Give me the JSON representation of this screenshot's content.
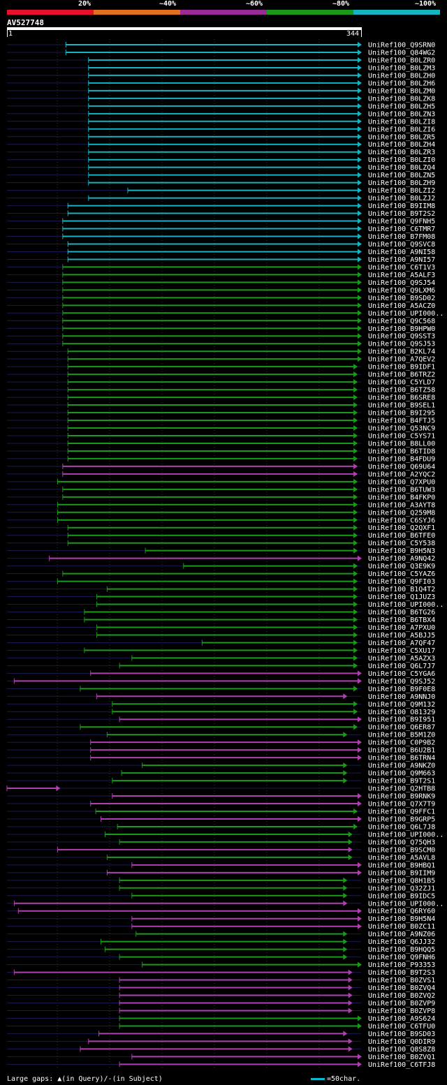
{
  "legend": {
    "labels": [
      "20%",
      "~40%",
      "~60%",
      "~80%",
      "~100%"
    ],
    "colors": [
      "#e8102c",
      "#e07020",
      "#9a2a98",
      "#1a9a1a",
      "#14b4c0"
    ]
  },
  "query": {
    "id": "AV527748",
    "start": "1",
    "end": "344"
  },
  "footer": {
    "gaps_prefix": "Large gaps:",
    "gaps_query": "(in Query)/",
    "gaps_dash": "-",
    "gaps_subject": "(in Subject)",
    "scale_label": "=50char."
  },
  "colors": {
    "cyan": "#14b4c0",
    "green": "#1a9a1a",
    "magenta": "#b040b0",
    "faint": "#1a1a50"
  },
  "chart_data": {
    "type": "alignment-map",
    "query_length": 344,
    "hits": [
      {
        "name": "UniRef100_Q9SRN0",
        "color": "cyan",
        "start": 58,
        "end": 344
      },
      {
        "name": "UniRef100_Q84WG2",
        "color": "cyan",
        "start": 58,
        "end": 344
      },
      {
        "name": "UniRef100_B0LZR0",
        "color": "cyan",
        "start": 80,
        "end": 344
      },
      {
        "name": "UniRef100_B0LZM3",
        "color": "cyan",
        "start": 80,
        "end": 344
      },
      {
        "name": "UniRef100_B0LZH0",
        "color": "cyan",
        "start": 80,
        "end": 344
      },
      {
        "name": "UniRef100_B0LZH6",
        "color": "cyan",
        "start": 80,
        "end": 344
      },
      {
        "name": "UniRef100_B0LZM0",
        "color": "cyan",
        "start": 80,
        "end": 344
      },
      {
        "name": "UniRef100_B0LZK8",
        "color": "cyan",
        "start": 80,
        "end": 344
      },
      {
        "name": "UniRef100_B0LZH5",
        "color": "cyan",
        "start": 80,
        "end": 344
      },
      {
        "name": "UniRef100_B0LZN3",
        "color": "cyan",
        "start": 80,
        "end": 344
      },
      {
        "name": "UniRef100_B0LZI8",
        "color": "cyan",
        "start": 80,
        "end": 344
      },
      {
        "name": "UniRef100_B0LZI6",
        "color": "cyan",
        "start": 80,
        "end": 344
      },
      {
        "name": "UniRef100_B0LZR5",
        "color": "cyan",
        "start": 80,
        "end": 344
      },
      {
        "name": "UniRef100_B0LZH4",
        "color": "cyan",
        "start": 80,
        "end": 344
      },
      {
        "name": "UniRef100_B0LZR3",
        "color": "cyan",
        "start": 80,
        "end": 344
      },
      {
        "name": "UniRef100_B0LZI0",
        "color": "cyan",
        "start": 80,
        "end": 344
      },
      {
        "name": "UniRef100_B0LZQ4",
        "color": "cyan",
        "start": 80,
        "end": 344
      },
      {
        "name": "UniRef100_B0LZN5",
        "color": "cyan",
        "start": 80,
        "end": 344
      },
      {
        "name": "UniRef100_B0LZH9",
        "color": "cyan",
        "start": 80,
        "end": 344
      },
      {
        "name": "UniRef100_B0LZI2",
        "color": "cyan",
        "start": 118,
        "end": 344
      },
      {
        "name": "UniRef100_B0LZJ2",
        "color": "cyan",
        "start": 80,
        "end": 344
      },
      {
        "name": "UniRef100_B9IIM8",
        "color": "cyan",
        "start": 60,
        "end": 344
      },
      {
        "name": "UniRef100_B9T2S2",
        "color": "cyan",
        "start": 60,
        "end": 344
      },
      {
        "name": "UniRef100_Q9FNH5",
        "color": "cyan",
        "start": 55,
        "end": 344
      },
      {
        "name": "UniRef100_C6TMR7",
        "color": "cyan",
        "start": 55,
        "end": 344
      },
      {
        "name": "UniRef100_B7FM08",
        "color": "cyan",
        "start": 55,
        "end": 344
      },
      {
        "name": "UniRef100_Q9SVC8",
        "color": "cyan",
        "start": 60,
        "end": 344
      },
      {
        "name": "UniRef100_A9NI58",
        "color": "cyan",
        "start": 60,
        "end": 344
      },
      {
        "name": "UniRef100_A9NI57",
        "color": "cyan",
        "start": 60,
        "end": 344
      },
      {
        "name": "UniRef100_C6T1V3",
        "color": "green",
        "start": 55,
        "end": 344
      },
      {
        "name": "UniRef100_A5ALF3",
        "color": "green",
        "start": 55,
        "end": 344
      },
      {
        "name": "UniRef100_Q9SJ54",
        "color": "green",
        "start": 55,
        "end": 344
      },
      {
        "name": "UniRef100_Q9LXM6",
        "color": "green",
        "start": 55,
        "end": 344
      },
      {
        "name": "UniRef100_B9SD02",
        "color": "green",
        "start": 55,
        "end": 344
      },
      {
        "name": "UniRef100_A5ACZ0",
        "color": "green",
        "start": 55,
        "end": 344
      },
      {
        "name": "UniRef100_UPI000..",
        "color": "green",
        "start": 55,
        "end": 344
      },
      {
        "name": "UniRef100_Q9C568",
        "color": "green",
        "start": 55,
        "end": 344
      },
      {
        "name": "UniRef100_B9HPW0",
        "color": "green",
        "start": 55,
        "end": 344
      },
      {
        "name": "UniRef100_Q9SST3",
        "color": "green",
        "start": 55,
        "end": 344
      },
      {
        "name": "UniRef100_Q9SJ53",
        "color": "green",
        "start": 55,
        "end": 344
      },
      {
        "name": "UniRef100_B2KL74",
        "color": "green",
        "start": 60,
        "end": 344
      },
      {
        "name": "UniRef100_A7QEV2",
        "color": "green",
        "start": 60,
        "end": 344
      },
      {
        "name": "UniRef100_B9IDF1",
        "color": "green",
        "start": 60,
        "end": 340
      },
      {
        "name": "UniRef100_B6TRZ2",
        "color": "green",
        "start": 60,
        "end": 340
      },
      {
        "name": "UniRef100_C5YLD7",
        "color": "green",
        "start": 60,
        "end": 340
      },
      {
        "name": "UniRef100_B6TZ58",
        "color": "green",
        "start": 60,
        "end": 340
      },
      {
        "name": "UniRef100_B6SRE8",
        "color": "green",
        "start": 60,
        "end": 340
      },
      {
        "name": "UniRef100_B9SEL1",
        "color": "green",
        "start": 60,
        "end": 340
      },
      {
        "name": "UniRef100_B9I295",
        "color": "green",
        "start": 60,
        "end": 340
      },
      {
        "name": "UniRef100_B4FTJ5",
        "color": "green",
        "start": 60,
        "end": 340
      },
      {
        "name": "UniRef100_Q53NC9",
        "color": "green",
        "start": 60,
        "end": 340
      },
      {
        "name": "UniRef100_C5YS71",
        "color": "green",
        "start": 60,
        "end": 340
      },
      {
        "name": "UniRef100_B8LL00",
        "color": "green",
        "start": 60,
        "end": 340
      },
      {
        "name": "UniRef100_B6TID8",
        "color": "green",
        "start": 60,
        "end": 340
      },
      {
        "name": "UniRef100_B4FDU9",
        "color": "green",
        "start": 60,
        "end": 340
      },
      {
        "name": "UniRef100_Q69U64",
        "color": "magenta",
        "start": 55,
        "end": 340
      },
      {
        "name": "UniRef100_A2YQC2",
        "color": "magenta",
        "start": 55,
        "end": 340
      },
      {
        "name": "UniRef100_Q7XPU0",
        "color": "green",
        "start": 50,
        "end": 340
      },
      {
        "name": "UniRef100_B6TUW3",
        "color": "green",
        "start": 55,
        "end": 340
      },
      {
        "name": "UniRef100_B4FKP0",
        "color": "green",
        "start": 55,
        "end": 340
      },
      {
        "name": "UniRef100_A3AYT8",
        "color": "green",
        "start": 50,
        "end": 340
      },
      {
        "name": "UniRef100_Q259M8",
        "color": "green",
        "start": 50,
        "end": 340
      },
      {
        "name": "UniRef100_C6SYJ6",
        "color": "green",
        "start": 50,
        "end": 340
      },
      {
        "name": "UniRef100_Q2QXF1",
        "color": "green",
        "start": 60,
        "end": 340
      },
      {
        "name": "UniRef100_B6TFE0",
        "color": "green",
        "start": 60,
        "end": 340
      },
      {
        "name": "UniRef100_C5Y538",
        "color": "green",
        "start": 60,
        "end": 340
      },
      {
        "name": "UniRef100_B9H5N3",
        "color": "green",
        "start": 135,
        "end": 340
      },
      {
        "name": "UniRef100_A9NQ42",
        "color": "magenta",
        "start": 42,
        "end": 344
      },
      {
        "name": "UniRef100_Q3E9K9",
        "color": "green",
        "start": 172,
        "end": 340
      },
      {
        "name": "UniRef100_C5YAZ6",
        "color": "green",
        "start": 55,
        "end": 340
      },
      {
        "name": "UniRef100_Q9FI03",
        "color": "green",
        "start": 50,
        "end": 340
      },
      {
        "name": "UniRef100_B1Q4T2",
        "color": "green",
        "start": 98,
        "end": 340
      },
      {
        "name": "UniRef100_Q1JUZ3",
        "color": "green",
        "start": 88,
        "end": 340
      },
      {
        "name": "UniRef100_UPI000..",
        "color": "green",
        "start": 88,
        "end": 340
      },
      {
        "name": "UniRef100_B6TG26",
        "color": "green",
        "start": 76,
        "end": 340
      },
      {
        "name": "UniRef100_B6TBX4",
        "color": "green",
        "start": 76,
        "end": 340
      },
      {
        "name": "UniRef100_A7PXU0",
        "color": "green",
        "start": 88,
        "end": 340
      },
      {
        "name": "UniRef100_A5BJJ5",
        "color": "green",
        "start": 88,
        "end": 340
      },
      {
        "name": "UniRef100_A7QF47",
        "color": "green",
        "start": 190,
        "end": 340
      },
      {
        "name": "UniRef100_C5XU17",
        "color": "green",
        "start": 76,
        "end": 340
      },
      {
        "name": "UniRef100_A5AZX3",
        "color": "green",
        "start": 122,
        "end": 340
      },
      {
        "name": "UniRef100_Q6L7J7",
        "color": "green",
        "start": 110,
        "end": 340
      },
      {
        "name": "UniRef100_C5YGA6",
        "color": "magenta",
        "start": 82,
        "end": 344
      },
      {
        "name": "UniRef100_Q9SJ52",
        "color": "magenta",
        "start": 8,
        "end": 344
      },
      {
        "name": "UniRef100_B9F0E8",
        "color": "green",
        "start": 72,
        "end": 340
      },
      {
        "name": "UniRef100_A9NNJ0",
        "color": "magenta",
        "start": 88,
        "end": 330
      },
      {
        "name": "UniRef100_Q9M132",
        "color": "green",
        "start": 103,
        "end": 340
      },
      {
        "name": "UniRef100_O81329",
        "color": "green",
        "start": 103,
        "end": 340
      },
      {
        "name": "UniRef100_B9I951",
        "color": "magenta",
        "start": 110,
        "end": 344
      },
      {
        "name": "UniRef100_Q6ER87",
        "color": "green",
        "start": 72,
        "end": 340
      },
      {
        "name": "UniRef100_B5M1Z0",
        "color": "green",
        "start": 98,
        "end": 330
      },
      {
        "name": "UniRef100_C0P9B2",
        "color": "magenta",
        "start": 82,
        "end": 344
      },
      {
        "name": "UniRef100_B6U2B1",
        "color": "magenta",
        "start": 82,
        "end": 344
      },
      {
        "name": "UniRef100_B6TRN4",
        "color": "magenta",
        "start": 82,
        "end": 344
      },
      {
        "name": "UniRef100_A9NKZ0",
        "color": "green",
        "start": 132,
        "end": 330
      },
      {
        "name": "UniRef100_Q9M663",
        "color": "green",
        "start": 112,
        "end": 330
      },
      {
        "name": "UniRef100_B9T2S1",
        "color": "green",
        "start": 103,
        "end": 330
      },
      {
        "name": "UniRef100_Q2HTB8",
        "color": "magenta",
        "start": 1,
        "end": 52
      },
      {
        "name": "UniRef100_B9RNK9",
        "color": "magenta",
        "start": 103,
        "end": 344
      },
      {
        "name": "UniRef100_Q7X7T9",
        "color": "magenta",
        "start": 82,
        "end": 344
      },
      {
        "name": "UniRef100_Q9FFC1",
        "color": "green",
        "start": 87,
        "end": 340
      },
      {
        "name": "UniRef100_B9GRP5",
        "color": "magenta",
        "start": 92,
        "end": 344
      },
      {
        "name": "UniRef100_Q6L7J8",
        "color": "green",
        "start": 108,
        "end": 340
      },
      {
        "name": "UniRef100_UPI000..",
        "color": "green",
        "start": 96,
        "end": 335
      },
      {
        "name": "UniRef100_Q75QH3",
        "color": "green",
        "start": 110,
        "end": 335
      },
      {
        "name": "UniRef100_B9SCM0",
        "color": "magenta",
        "start": 50,
        "end": 335
      },
      {
        "name": "UniRef100_A5AVL8",
        "color": "green",
        "start": 98,
        "end": 335
      },
      {
        "name": "UniRef100_B9HBQ1",
        "color": "magenta",
        "start": 122,
        "end": 344
      },
      {
        "name": "UniRef100_B9IIM9",
        "color": "magenta",
        "start": 98,
        "end": 344
      },
      {
        "name": "UniRef100_Q8H1B5",
        "color": "green",
        "start": 110,
        "end": 330
      },
      {
        "name": "UniRef100_Q32ZJ1",
        "color": "green",
        "start": 110,
        "end": 330
      },
      {
        "name": "UniRef100_B9IDC5",
        "color": "green",
        "start": 122,
        "end": 330
      },
      {
        "name": "UniRef100_UPI000..",
        "color": "magenta",
        "start": 8,
        "end": 330
      },
      {
        "name": "UniRef100_Q6RY60",
        "color": "magenta",
        "start": 12,
        "end": 344
      },
      {
        "name": "UniRef100_B9H5N4",
        "color": "magenta",
        "start": 122,
        "end": 344
      },
      {
        "name": "UniRef100_B0ZC11",
        "color": "magenta",
        "start": 122,
        "end": 344
      },
      {
        "name": "UniRef100_A9NZ06",
        "color": "green",
        "start": 126,
        "end": 330
      },
      {
        "name": "UniRef100_Q6JJ32",
        "color": "green",
        "start": 92,
        "end": 330
      },
      {
        "name": "UniRef100_B9HQQ5",
        "color": "green",
        "start": 96,
        "end": 330
      },
      {
        "name": "UniRef100_Q9FNH6",
        "color": "green",
        "start": 110,
        "end": 330
      },
      {
        "name": "UniRef100_P93353",
        "color": "green",
        "start": 132,
        "end": 344
      },
      {
        "name": "UniRef100_B9T2S3",
        "color": "magenta",
        "start": 8,
        "end": 335
      },
      {
        "name": "UniRef100_B0ZVS1",
        "color": "magenta",
        "start": 110,
        "end": 335
      },
      {
        "name": "UniRef100_B0ZVQ4",
        "color": "magenta",
        "start": 110,
        "end": 335
      },
      {
        "name": "UniRef100_B0ZVQ2",
        "color": "magenta",
        "start": 110,
        "end": 335
      },
      {
        "name": "UniRef100_B0ZVP9",
        "color": "magenta",
        "start": 110,
        "end": 335
      },
      {
        "name": "UniRef100_B0ZVP8",
        "color": "magenta",
        "start": 110,
        "end": 335
      },
      {
        "name": "UniRef100_A9S624",
        "color": "green",
        "start": 110,
        "end": 344
      },
      {
        "name": "UniRef100_C6TFU0",
        "color": "green",
        "start": 110,
        "end": 344
      },
      {
        "name": "UniRef100_B9SD03",
        "color": "magenta",
        "start": 90,
        "end": 330
      },
      {
        "name": "UniRef100_Q0DIR9",
        "color": "magenta",
        "start": 80,
        "end": 335
      },
      {
        "name": "UniRef100_Q8S8Z8",
        "color": "magenta",
        "start": 72,
        "end": 335
      },
      {
        "name": "UniRef100_B0ZVQ1",
        "color": "magenta",
        "start": 122,
        "end": 344
      },
      {
        "name": "UniRef100_C6TFJ8",
        "color": "magenta",
        "start": 110,
        "end": 344
      }
    ]
  }
}
